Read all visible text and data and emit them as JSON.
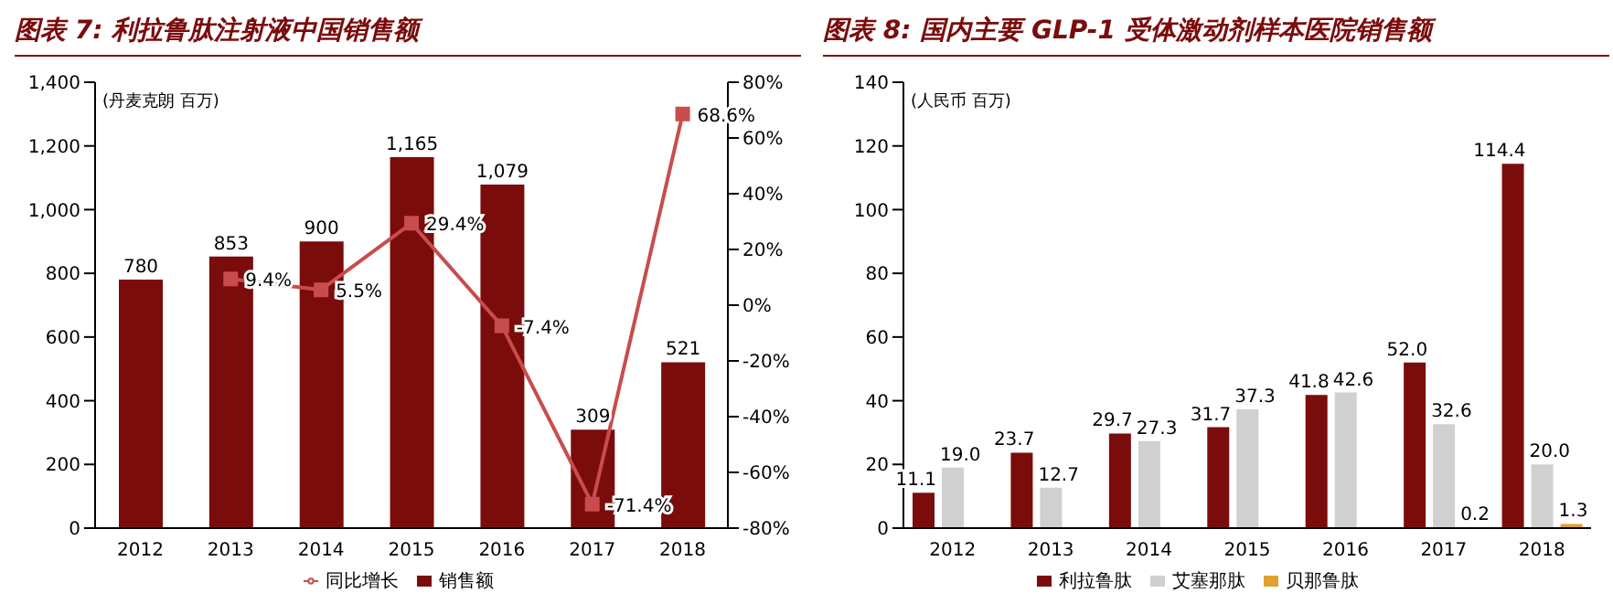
{
  "chart_data": [
    {
      "type": "bar",
      "title": "图表 7: 利拉鲁肽注射液中国销售额",
      "ylabel": "(丹麦克朗 百万)",
      "categories": [
        "2012",
        "2013",
        "2014",
        "2015",
        "2016",
        "2017",
        "2018"
      ],
      "series": [
        {
          "name": "销售额",
          "color": "#7b0c0c",
          "values": [
            780,
            853,
            900,
            1165,
            1079,
            309,
            521
          ],
          "value_labels": [
            "780",
            "853",
            "900",
            "1,165",
            "1,079",
            "309",
            "521"
          ]
        },
        {
          "name": "同比增长",
          "type": "line",
          "axis": "y2",
          "color": "#c94c4c",
          "values": [
            null,
            9.4,
            5.5,
            29.4,
            -7.4,
            -71.4,
            68.6
          ],
          "value_labels": [
            null,
            "9.4%",
            "5.5%",
            "29.4%",
            "-7.4%",
            "-71.4%",
            "68.6%"
          ]
        }
      ],
      "ylim": [
        0,
        1400
      ],
      "yticks": [
        0,
        200,
        400,
        600,
        800,
        {
          "value": 1000,
          "label": "1,000"
        },
        {
          "value": 1200,
          "label": "1,200"
        },
        {
          "value": 1400,
          "label": "1,400"
        }
      ],
      "y2lim": [
        -80,
        80
      ],
      "y2ticks": [
        {
          "value": -80,
          "label": "-80%"
        },
        {
          "value": -60,
          "label": "-60%"
        },
        {
          "value": -40,
          "label": "-40%"
        },
        {
          "value": -20,
          "label": "-20%"
        },
        {
          "value": 0,
          "label": "0%"
        },
        {
          "value": 20,
          "label": "20%"
        },
        {
          "value": 40,
          "label": "40%"
        },
        {
          "value": 60,
          "label": "60%"
        },
        {
          "value": 80,
          "label": "80%"
        }
      ],
      "marker": "square",
      "legend": "bottom"
    },
    {
      "type": "bar",
      "title": "图表 8: 国内主要 GLP-1 受体激动剂样本医院销售额",
      "ylabel": "(人民币 百万)",
      "categories": [
        "2012",
        "2013",
        "2014",
        "2015",
        "2016",
        "2017",
        "2018"
      ],
      "series": [
        {
          "name": "利拉鲁肽",
          "color": "#7b0c0c",
          "values": [
            11.1,
            23.7,
            29.7,
            31.7,
            41.8,
            52.0,
            114.4
          ],
          "value_labels": [
            "11.1",
            "23.7",
            "29.7",
            "31.7",
            "41.8",
            "52.0",
            "114.4"
          ]
        },
        {
          "name": "艾塞那肽",
          "color": "#d0d0d0",
          "values": [
            19.0,
            12.7,
            27.3,
            37.3,
            42.6,
            32.6,
            20.0
          ],
          "value_labels": [
            "19.0",
            "12.7",
            "27.3",
            "37.3",
            "42.6",
            "32.6",
            "20.0"
          ]
        },
        {
          "name": "贝那鲁肽",
          "color": "#e0a030",
          "values": [
            null,
            null,
            null,
            null,
            null,
            0.2,
            1.3
          ],
          "value_labels": [
            null,
            null,
            null,
            null,
            null,
            "0.2",
            "1.3"
          ]
        }
      ],
      "ylim": [
        0,
        140
      ],
      "yticks": [
        0,
        20,
        40,
        60,
        80,
        100,
        120,
        140
      ],
      "legend": "bottom"
    }
  ]
}
